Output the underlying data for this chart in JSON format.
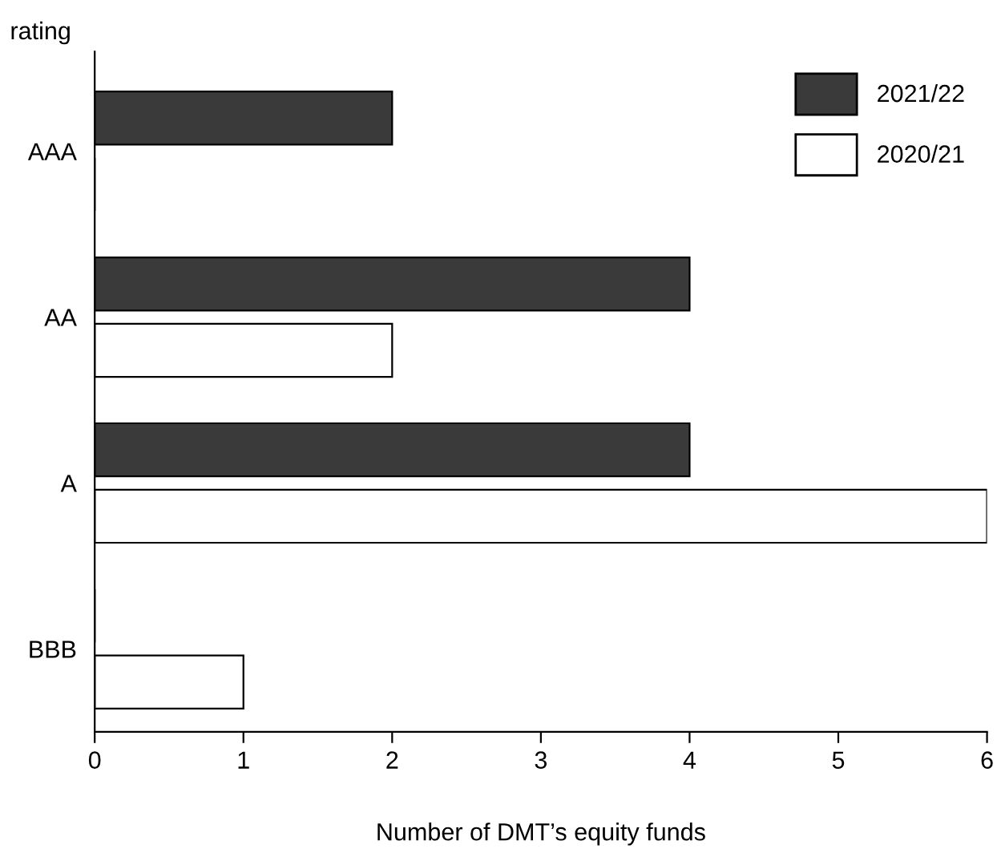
{
  "chart_data": {
    "type": "bar",
    "orientation": "horizontal",
    "ylabel": "rating",
    "xlabel": "Number of DMT’s equity funds",
    "categories": [
      "AAA",
      "AA",
      "A",
      "BBB"
    ],
    "series": [
      {
        "name": "2021/22",
        "color": "#3a3a3a",
        "values": [
          2,
          4,
          4,
          0
        ]
      },
      {
        "name": "2020/21",
        "color": "#ffffff",
        "values": [
          0,
          2,
          6,
          1
        ]
      }
    ],
    "xlim": [
      0,
      6
    ],
    "xticks": [
      0,
      1,
      2,
      3,
      4,
      5,
      6
    ],
    "grid": false,
    "legend": "top right"
  }
}
